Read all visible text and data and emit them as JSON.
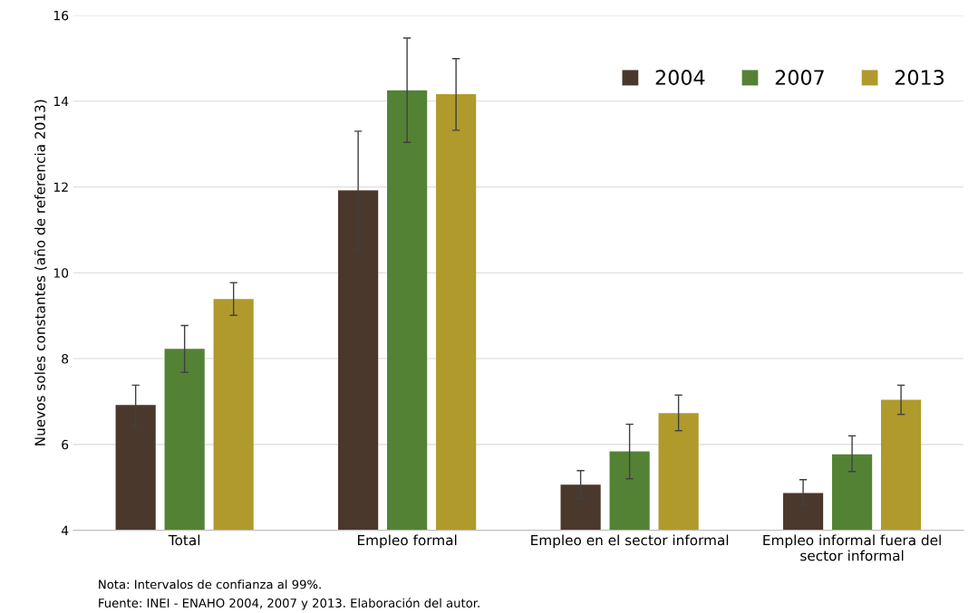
{
  "chart_data": {
    "type": "bar",
    "ylabel": "Nuevos soles constantes (año de referencia 2013)",
    "categories": [
      "Total",
      "Empleo formal",
      "Empleo en el sector informal",
      "Empleo informal fuera del\nsector informal"
    ],
    "series": [
      {
        "name": "2004",
        "color": "#4a382c",
        "values": [
          6.92,
          11.92,
          5.06,
          4.87
        ],
        "errors": [
          [
            6.45,
            7.38
          ],
          [
            10.55,
            13.3
          ],
          [
            4.74,
            5.39
          ],
          [
            4.59,
            5.18
          ]
        ]
      },
      {
        "name": "2007",
        "color": "#548235",
        "values": [
          8.23,
          14.25,
          5.84,
          5.77
        ],
        "errors": [
          [
            7.68,
            8.77
          ],
          [
            13.04,
            15.47
          ],
          [
            5.2,
            6.47
          ],
          [
            5.37,
            6.2
          ]
        ]
      },
      {
        "name": "2013",
        "color": "#b09a2c",
        "values": [
          9.39,
          14.16,
          6.73,
          7.04
        ],
        "errors": [
          [
            9.01,
            9.77
          ],
          [
            13.32,
            14.99
          ],
          [
            6.32,
            7.15
          ],
          [
            6.7,
            7.38
          ]
        ]
      }
    ],
    "ylim": [
      4,
      16
    ],
    "yticks": [
      4,
      6,
      8,
      10,
      12,
      14,
      16
    ],
    "grid": "y",
    "legend": "top right",
    "annotations": [
      "Nota: Intervalos de confianza al 99%.",
      "Fuente: INEI - ENAHO 2004, 2007 y 2013. Elaboración del autor."
    ]
  }
}
